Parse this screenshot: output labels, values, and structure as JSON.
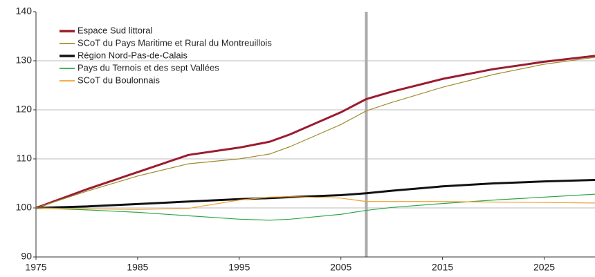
{
  "chart_data": {
    "type": "line",
    "x": [
      1975,
      1980,
      1985,
      1990,
      1995,
      1998,
      2000,
      2005,
      2007.5,
      2010,
      2015,
      2020,
      2025,
      2030
    ],
    "series": [
      {
        "name": "Espace Sud littoral",
        "color": "#9b1b30",
        "width": 3,
        "values": [
          100,
          103.8,
          107.3,
          110.8,
          112.3,
          113.5,
          115,
          119.5,
          122.2,
          123.7,
          126.3,
          128.3,
          129.8,
          131
        ]
      },
      {
        "name": "SCoT du Pays Maritime et Rural du Montreuillois",
        "color": "#a08c2c",
        "width": 1.2,
        "values": [
          100,
          103.4,
          106.5,
          109,
          110,
          111,
          112.5,
          117,
          119.8,
          121.5,
          124.6,
          127.2,
          129.3,
          130.7
        ]
      },
      {
        "name": "Région Nord-Pas-de-Calais",
        "color": "#111111",
        "width": 3,
        "values": [
          100,
          100.3,
          100.8,
          101.3,
          101.8,
          102,
          102.2,
          102.6,
          103,
          103.5,
          104.4,
          105,
          105.4,
          105.7
        ]
      },
      {
        "name": "Pays du Ternois et des sept Vallées",
        "color": "#2ea84a",
        "width": 1.2,
        "values": [
          100,
          99.6,
          99.1,
          98.4,
          97.7,
          97.5,
          97.7,
          98.7,
          99.5,
          100.1,
          100.9,
          101.6,
          102.2,
          102.8
        ]
      },
      {
        "name": "SCoT du Boulonnais",
        "color": "#f0a030",
        "width": 1.2,
        "values": [
          100,
          99.8,
          99.7,
          99.9,
          101.6,
          102.2,
          102.3,
          102,
          101.3,
          101.3,
          101.3,
          101.2,
          101.1,
          101
        ]
      }
    ],
    "xlim": [
      1975,
      2030
    ],
    "xticks": [
      1975,
      1985,
      1995,
      2005,
      2015,
      2025
    ],
    "ylim": [
      90,
      140
    ],
    "yticks": [
      90,
      100,
      110,
      120,
      130,
      140
    ],
    "grid": true,
    "reference_x": 2007.5,
    "legend": "upper left"
  }
}
